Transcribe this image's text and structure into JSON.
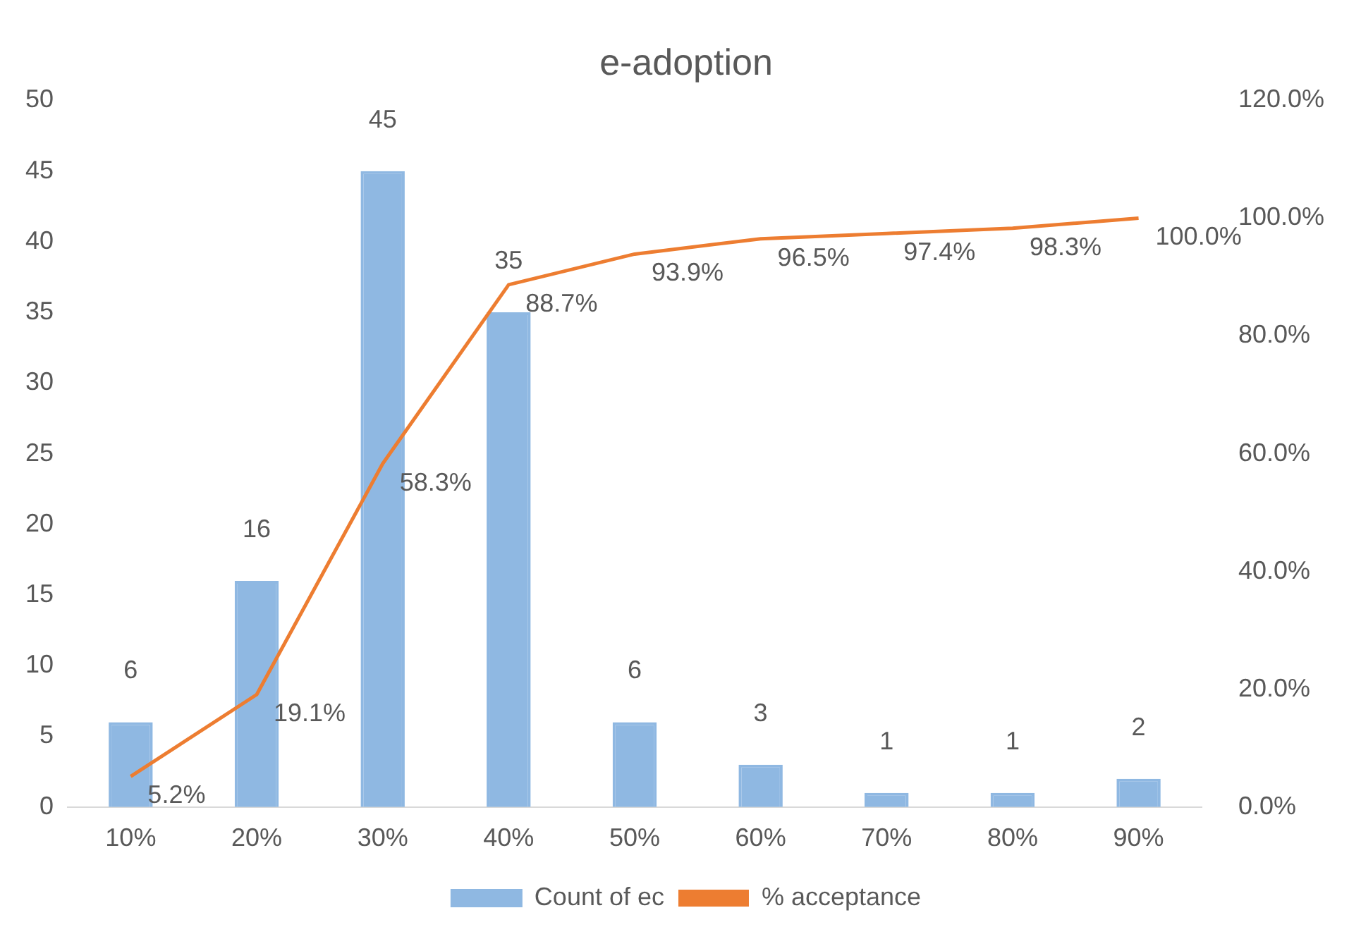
{
  "chart_data": {
    "type": "bar",
    "title": "e-adoption",
    "categories": [
      "10%",
      "20%",
      "30%",
      "40%",
      "50%",
      "60%",
      "70%",
      "80%",
      "90%"
    ],
    "series": [
      {
        "name": "Count of ec",
        "color": "#8fb8e2",
        "values": [
          6,
          16,
          45,
          35,
          6,
          3,
          1,
          1,
          2
        ],
        "value_labels": [
          "6",
          "16",
          "45",
          "35",
          "6",
          "3",
          "1",
          "1",
          "2"
        ]
      },
      {
        "name": "% acceptance",
        "type": "line",
        "axis": "y2",
        "color": "#ed7d31",
        "values": [
          5.2,
          19.1,
          58.3,
          88.7,
          93.9,
          96.5,
          97.4,
          98.3,
          100.0
        ],
        "value_labels": [
          "5.2%",
          "19.1%",
          "58.3%",
          "88.7%",
          "93.9%",
          "96.5%",
          "97.4%",
          "98.3%",
          "100.0%"
        ]
      }
    ],
    "ylim": [
      0,
      50
    ],
    "yticks": [
      0,
      5,
      10,
      15,
      20,
      25,
      30,
      35,
      40,
      45,
      50
    ],
    "y2lim": [
      0,
      120
    ],
    "y2ticks": [
      {
        "value": 0,
        "label": "0.0%"
      },
      {
        "value": 20,
        "label": "20.0%"
      },
      {
        "value": 40,
        "label": "40.0%"
      },
      {
        "value": 60,
        "label": "60.0%"
      },
      {
        "value": 80,
        "label": "80.0%"
      },
      {
        "value": 100,
        "label": "100.0%"
      },
      {
        "value": 120,
        "label": "120.0%"
      }
    ],
    "grid": false,
    "legend": "bottom",
    "marker": "none",
    "line_style": "solid"
  }
}
